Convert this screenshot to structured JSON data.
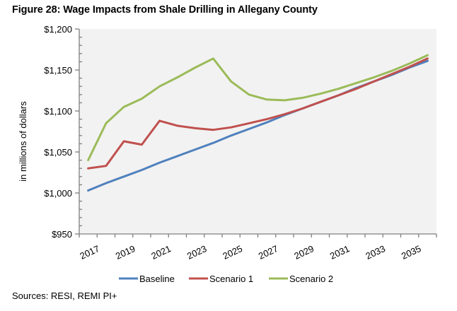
{
  "figure": {
    "title": "Figure 28: Wage Impacts from Shale Drilling in Allegany County",
    "source": "Sources: RESI, REMI PI+"
  },
  "chart_data": {
    "type": "line",
    "title": "Figure 28: Wage Impacts from Shale Drilling in Allegany County",
    "xlabel": "",
    "ylabel": "in millions of dollars",
    "ylim": [
      950,
      1200
    ],
    "y_major_step": 50,
    "y_minor_step": 10,
    "y_tick_labels": [
      "$950",
      "$1,000",
      "$1,050",
      "$1,100",
      "$1,150",
      "$1,200"
    ],
    "x": [
      "2017",
      "2018",
      "2019",
      "2020",
      "2021",
      "2022",
      "2023",
      "2024",
      "2025",
      "2026",
      "2027",
      "2028",
      "2029",
      "2030",
      "2031",
      "2032",
      "2033",
      "2034",
      "2035",
      "2036"
    ],
    "x_tick_labels_shown": [
      "2017",
      "2019",
      "2021",
      "2023",
      "2025",
      "2027",
      "2029",
      "2031",
      "2033",
      "2035"
    ],
    "grid": false,
    "legend_position": "bottom",
    "series": [
      {
        "name": "Baseline",
        "color": "#4f81bd",
        "values": [
          1003,
          1012,
          1020,
          1028,
          1037,
          1045,
          1053,
          1061,
          1070,
          1078,
          1086,
          1095,
          1103,
          1111,
          1119,
          1128,
          1136,
          1144,
          1153,
          1161
        ]
      },
      {
        "name": "Scenario 1",
        "color": "#c0504d",
        "values": [
          1030,
          1033,
          1063,
          1059,
          1088,
          1082,
          1079,
          1077,
          1080,
          1085,
          1090,
          1096,
          1103,
          1111,
          1119,
          1127,
          1136,
          1145,
          1154,
          1164
        ]
      },
      {
        "name": "Scenario 2",
        "color": "#9bbb59",
        "values": [
          1040,
          1085,
          1105,
          1115,
          1130,
          1141,
          1153,
          1164,
          1136,
          1120,
          1114,
          1113,
          1116,
          1121,
          1127,
          1134,
          1141,
          1149,
          1158,
          1168
        ]
      }
    ]
  },
  "colors": {
    "plot_background": "#f2f2f2",
    "axis": "#7f7f7f"
  }
}
